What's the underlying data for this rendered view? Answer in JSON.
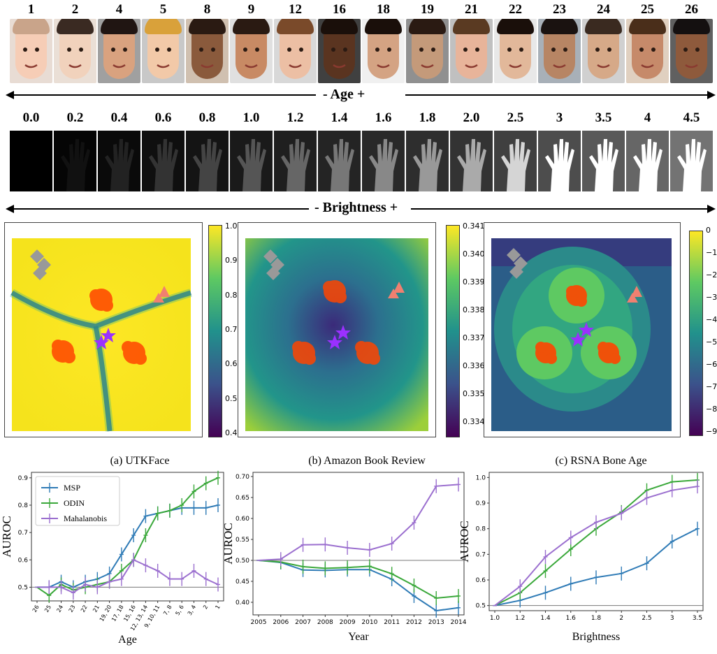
{
  "age_labels": [
    "1",
    "2",
    "4",
    "5",
    "8",
    "9",
    "12",
    "16",
    "18",
    "19",
    "21",
    "22",
    "23",
    "24",
    "25",
    "26"
  ],
  "brightness_labels": [
    "0.0",
    "0.2",
    "0.4",
    "0.6",
    "0.8",
    "1.0",
    "1.2",
    "1.4",
    "1.6",
    "1.8",
    "2.0",
    "2.5",
    "3",
    "3.5",
    "4",
    "4.5"
  ],
  "age_arrow_label": "- Age +",
  "brightness_arrow_label": "- Brightness +",
  "heatmaps": {
    "cbar1_ticks": [
      "1.0",
      "0.9",
      "0.8",
      "0.7",
      "0.6",
      "0.5",
      "0.4"
    ],
    "cbar2_ticks": [
      "0.341",
      "0.340",
      "0.339",
      "0.338",
      "0.337",
      "0.336",
      "0.335",
      "0.334"
    ],
    "cbar3_ticks": [
      "0",
      "−1",
      "−2",
      "−3",
      "−4",
      "−5",
      "−6",
      "−7",
      "−8",
      "−9"
    ]
  },
  "colors": {
    "msp": "#2f7bb6",
    "odin": "#3aa83a",
    "mahalanobis": "#9b6fcf"
  },
  "chart_data": [
    {
      "type": "line",
      "title": "(a) UTKFace",
      "xlabel": "Age",
      "ylabel": "AUROC",
      "categories": [
        "26",
        "25",
        "24",
        "23",
        "22",
        "21",
        "19, 20",
        "17, 18",
        "15, 16",
        "12, 13, 14",
        "9, 10, 11",
        "7, 8",
        "5, 6",
        "3, 4",
        "2",
        "1"
      ],
      "ylim": [
        0.45,
        0.92
      ],
      "yticks": [
        "0.5",
        "0.6",
        "0.7",
        "0.8",
        "0.9"
      ],
      "legend": [
        "MSP",
        "ODIN",
        "Mahalanobis"
      ],
      "series": [
        {
          "name": "MSP",
          "values": [
            0.5,
            0.5,
            0.52,
            0.5,
            0.52,
            0.53,
            0.55,
            0.62,
            0.69,
            0.76,
            0.77,
            0.78,
            0.79,
            0.79,
            0.79,
            0.8
          ]
        },
        {
          "name": "ODIN",
          "values": [
            0.5,
            0.47,
            0.51,
            0.49,
            0.5,
            0.51,
            0.52,
            0.56,
            0.6,
            0.69,
            0.77,
            0.78,
            0.8,
            0.85,
            0.88,
            0.9
          ]
        },
        {
          "name": "Mahalanobis",
          "values": [
            0.5,
            0.5,
            0.5,
            0.48,
            0.51,
            0.5,
            0.52,
            0.53,
            0.6,
            0.58,
            0.56,
            0.53,
            0.53,
            0.56,
            0.53,
            0.51
          ]
        }
      ]
    },
    {
      "type": "line",
      "title": "(b) Amazon Book Review",
      "xlabel": "Year",
      "ylabel": "AUROC",
      "categories": [
        "2005",
        "2006",
        "2007",
        "2008",
        "2009",
        "2010",
        "2011",
        "2012",
        "2013",
        "2014"
      ],
      "ylim": [
        0.37,
        0.71
      ],
      "yticks": [
        "0.40",
        "0.45",
        "0.50",
        "0.55",
        "0.60",
        "0.65",
        "0.70"
      ],
      "series": [
        {
          "name": "MSP",
          "values": [
            0.5,
            0.495,
            0.477,
            0.476,
            0.478,
            0.478,
            0.455,
            0.415,
            0.38,
            0.387
          ]
        },
        {
          "name": "ODIN",
          "values": [
            0.5,
            0.496,
            0.485,
            0.481,
            0.483,
            0.486,
            0.468,
            0.44,
            0.41,
            0.415
          ]
        },
        {
          "name": "Mahalanobis",
          "values": [
            0.5,
            0.503,
            0.537,
            0.538,
            0.53,
            0.525,
            0.54,
            0.59,
            0.677,
            0.681
          ]
        }
      ]
    },
    {
      "type": "line",
      "title": "(c) RSNA Bone Age",
      "xlabel": "Brightness",
      "ylabel": "AUROC",
      "categories": [
        "1.0",
        "1.2",
        "1.4",
        "1.6",
        "1.8",
        "2",
        "2.5",
        "3",
        "3.5"
      ],
      "ylim": [
        0.48,
        1.02
      ],
      "yticks": [
        "0.5",
        "0.6",
        "0.7",
        "0.8",
        "0.9",
        "1.0"
      ],
      "series": [
        {
          "name": "MSP",
          "values": [
            0.5,
            0.52,
            0.55,
            0.585,
            0.61,
            0.625,
            0.665,
            0.75,
            0.8
          ]
        },
        {
          "name": "ODIN",
          "values": [
            0.5,
            0.55,
            0.635,
            0.72,
            0.8,
            0.865,
            0.95,
            0.983,
            0.99
          ]
        },
        {
          "name": "Mahalanobis",
          "values": [
            0.5,
            0.575,
            0.69,
            0.765,
            0.825,
            0.86,
            0.92,
            0.95,
            0.965
          ]
        }
      ]
    }
  ]
}
